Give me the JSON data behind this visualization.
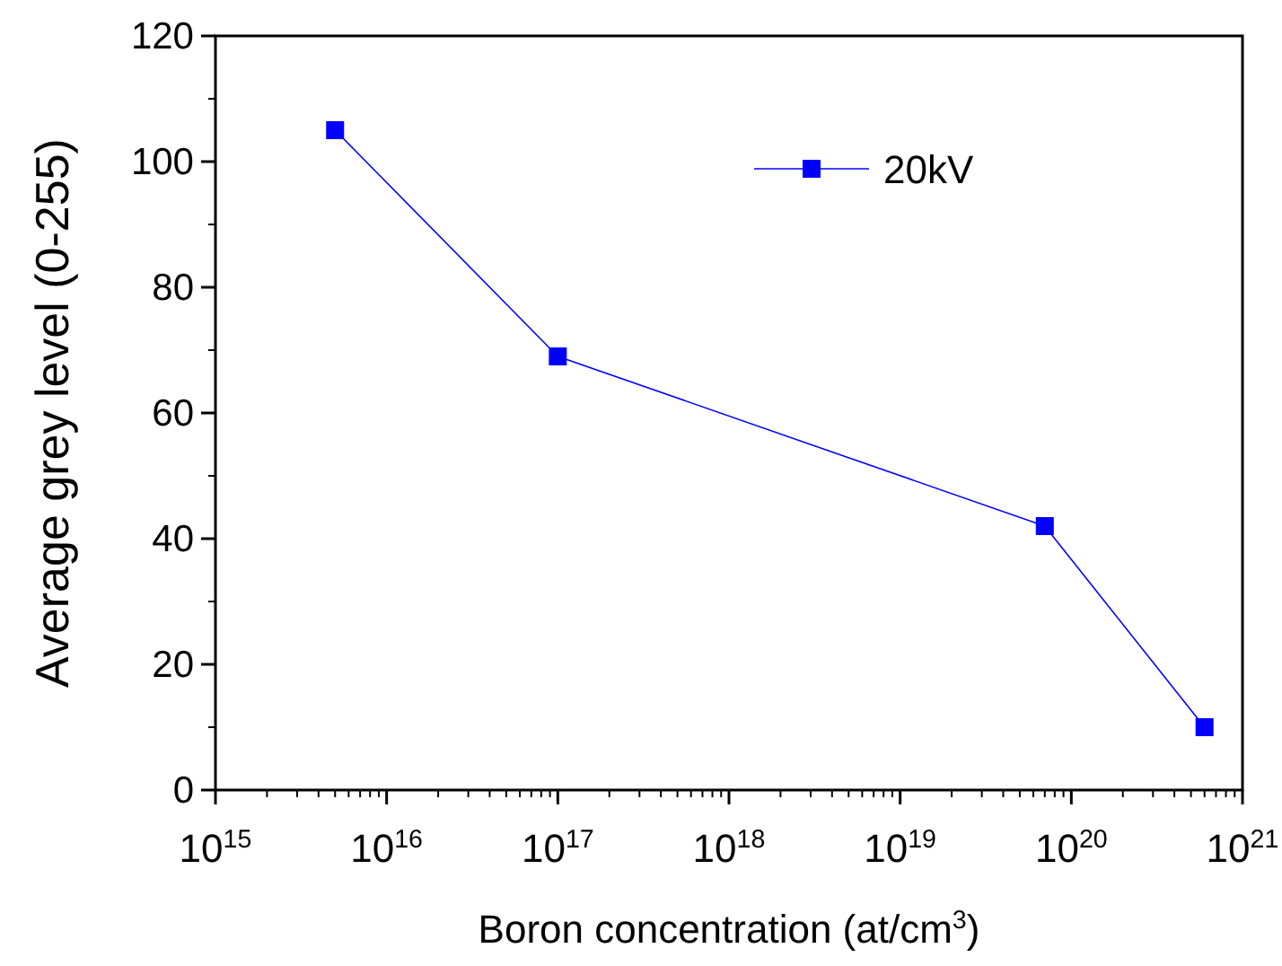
{
  "chart_data": {
    "type": "line",
    "xlabel": "Boron concentration (at/cm$^{3}$)",
    "ylabel": "Average grey level (0-255)",
    "log": "x",
    "x": [
      5000000000000000.0,
      1e+17,
      7e+19,
      6e+20
    ],
    "series": [
      {
        "name": "20kV",
        "color": "#0000ff",
        "values": [
          105,
          69,
          42,
          10
        ]
      }
    ],
    "xlim": [
      1000000000000000.0,
      1e+21
    ],
    "xticks": [
      {
        "value": 1000000000000000.0,
        "label": "10$^{15}$"
      },
      {
        "value": 1e+16,
        "label": "10$^{16}$"
      },
      {
        "value": 1e+17,
        "label": "10$^{17}$"
      },
      {
        "value": 1e+18,
        "label": "10$^{18}$"
      },
      {
        "value": 1e+19,
        "label": "10$^{19}$"
      },
      {
        "value": 1e+20,
        "label": "10$^{20}$"
      },
      {
        "value": 1e+21,
        "label": "10$^{21}$"
      }
    ],
    "ylim": [
      0,
      120
    ],
    "yticks": [
      0,
      20,
      40,
      60,
      80,
      100,
      120
    ],
    "grid": false,
    "legend": "top right",
    "marker": "square",
    "line_style": "solid"
  }
}
